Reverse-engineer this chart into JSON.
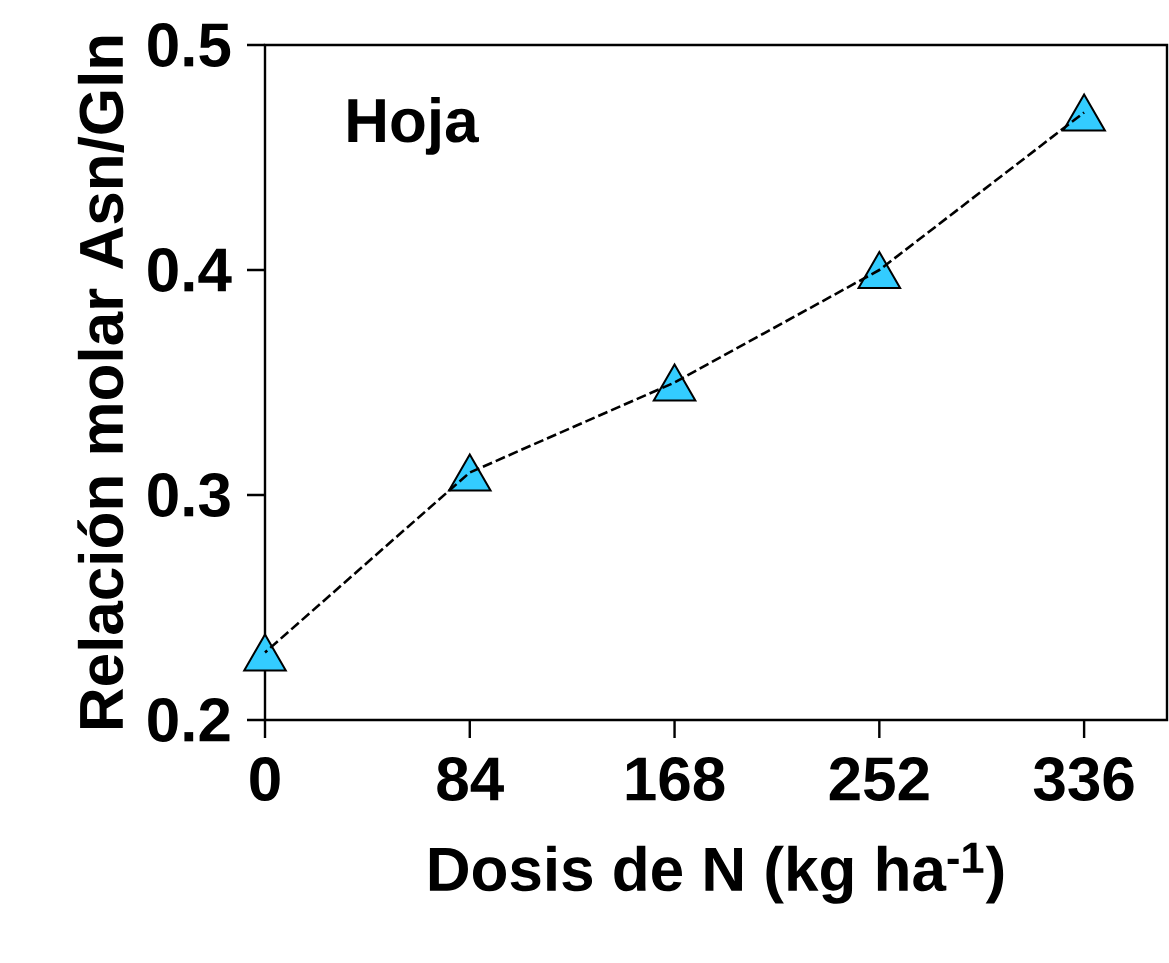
{
  "chart_data": {
    "type": "line",
    "xlabel": "Dosis de N (kg ha$^{-1}$)",
    "ylabel": "Relación molar Asn/Gln",
    "annotations": [
      "Hoja"
    ],
    "x": [
      0,
      84,
      168,
      252,
      336
    ],
    "series": [
      {
        "type": "scatter",
        "color": "#33ccff",
        "marker": "triangle",
        "values": [
          0.23,
          0.31,
          0.35,
          0.4,
          0.47
        ]
      },
      {
        "color": "#000000",
        "marker": "none",
        "line_style": "dashed",
        "values": [
          0.23,
          0.31,
          0.35,
          0.4,
          0.47
        ]
      }
    ],
    "xlim": [
      0,
      370
    ],
    "ylim": [
      0.2,
      0.5
    ],
    "xticks": [
      0,
      84,
      168,
      252,
      336
    ],
    "yticks": [
      0.2,
      0.3,
      0.4,
      0.5
    ]
  }
}
